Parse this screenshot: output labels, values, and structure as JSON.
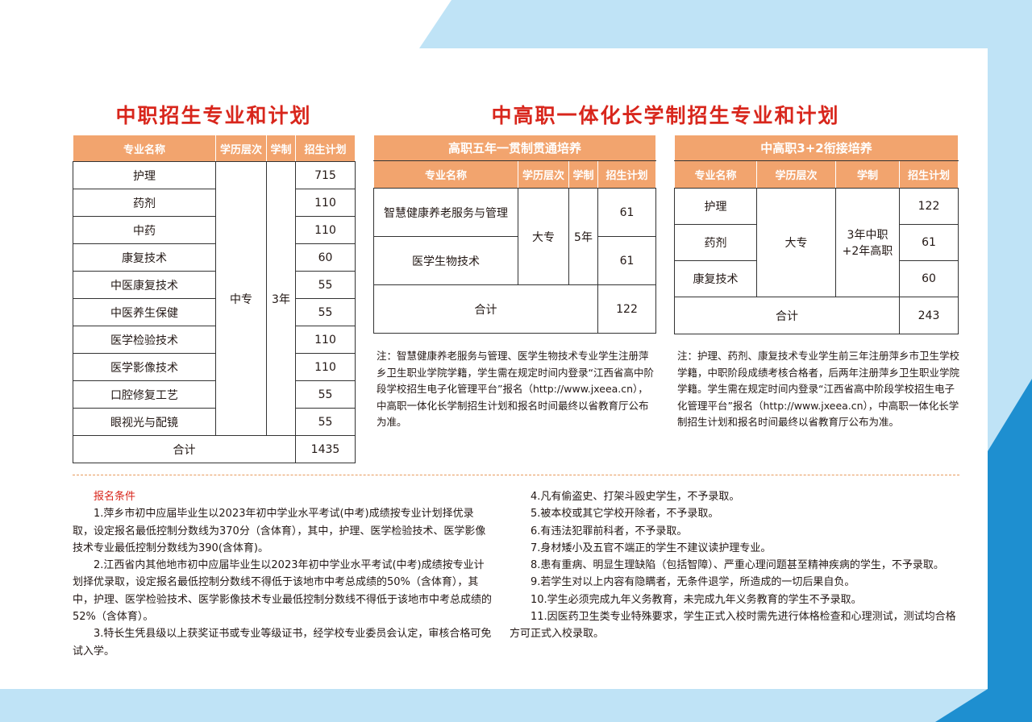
{
  "colors": {
    "accent": "#d8261c",
    "header": "#f2a46e",
    "background_band": "#bfe3f6"
  },
  "left": {
    "title": "中职招生专业和计划",
    "headers": [
      "专业名称",
      "学历层次",
      "学制",
      "招生计划"
    ],
    "rows": [
      [
        "护理",
        "715"
      ],
      [
        "药剂",
        "110"
      ],
      [
        "中药",
        "110"
      ],
      [
        "康复技术",
        "60"
      ],
      [
        "中医康复技术",
        "55"
      ],
      [
        "中医养生保健",
        "55"
      ],
      [
        "医学检验技术",
        "110"
      ],
      [
        "医学影像技术",
        "110"
      ],
      [
        "口腔修复工艺",
        "55"
      ],
      [
        "眼视光与配镜",
        "55"
      ]
    ],
    "level": "中专",
    "years": "3年",
    "total_label": "合计",
    "total": "1435"
  },
  "right_title": "中高职一体化长学制招生专业和计划",
  "mid": {
    "section": "高职五年一贯制贯通培养",
    "headers": [
      "专业名称",
      "学历层次",
      "学制",
      "招生计划"
    ],
    "rows": [
      [
        "智慧健康养老服务与管理",
        "61"
      ],
      [
        "医学生物技术",
        "61"
      ]
    ],
    "level": "大专",
    "years": "5年",
    "total_label": "合计",
    "total": "122",
    "note": "注：智慧健康养老服务与管理、医学生物技术专业学生注册萍乡卫生职业学院学籍，学生需在规定时间内登录“江西省高中阶段学校招生电子化管理平台”报名（http://www.jxeea.cn），中高职一体化长学制招生计划和报名时间最终以省教育厅公布为准。"
  },
  "right": {
    "section": "中高职3+2衔接培养",
    "headers": [
      "专业名称",
      "学历层次",
      "学制",
      "招生计划"
    ],
    "rows": [
      [
        "护理",
        "122"
      ],
      [
        "药剂",
        "61"
      ],
      [
        "康复技术",
        "60"
      ]
    ],
    "level": "大专",
    "years_line1": "3年中职",
    "years_line2": "+2年高职",
    "total_label": "合计",
    "total": "243",
    "note": "注：护理、药剂、康复技术专业学生前三年注册萍乡市卫生学校学籍，中职阶段成绩考核合格者，后两年注册萍乡卫生职业学院学籍。学生需在规定时间内登录“江西省高中阶段学校招生电子化管理平台”报名（http://www.jxeea.cn），中高职一体化长学制招生计划和报名时间最终以省教育厅公布为准。"
  },
  "conditions": {
    "title": "报名条件",
    "left": [
      "1.萍乡市初中应届毕业生以2023年初中学业水平考试(中考)成绩按专业计划择优录取，设定报名最低控制分数线为370分（含体育），其中，护理、医学检验技术、医学影像技术专业最低控制分数线为390(含体育)。",
      "2.江西省内其他地市初中应届毕业生以2023年初中学业水平考试(中考)成绩按专业计划择优录取，设定报名最低控制分数线不得低于该地市中考总成绩的50%（含体育），其中，护理、医学检验技术、医学影像技术专业最低控制分数线不得低于该地市中考总成绩的52%（含体育）。",
      "3.特长生凭县级以上获奖证书或专业等级证书，经学校专业委员会认定，审核合格可免试入学。"
    ],
    "right": [
      "4.凡有偷盗史、打架斗殴史学生，不予录取。",
      "5.被本校或其它学校开除者，不予录取。",
      "6.有违法犯罪前科者，不予录取。",
      "7.身材矮小及五官不端正的学生不建议读护理专业。",
      "8.患有重病、明显生理缺陷（包括智障）、严重心理问题甚至精神疾病的学生，不予录取。",
      "9.若学生对以上内容有隐瞒者，无条件退学，所造成的一切后果自负。",
      "10.学生必须完成九年义务教育，未完成九年义务教育的学生不予录取。",
      "11.因医药卫生类专业特殊要求，学生正式入校时需先进行体格检查和心理测试，测试均合格方可正式入校录取。"
    ]
  }
}
